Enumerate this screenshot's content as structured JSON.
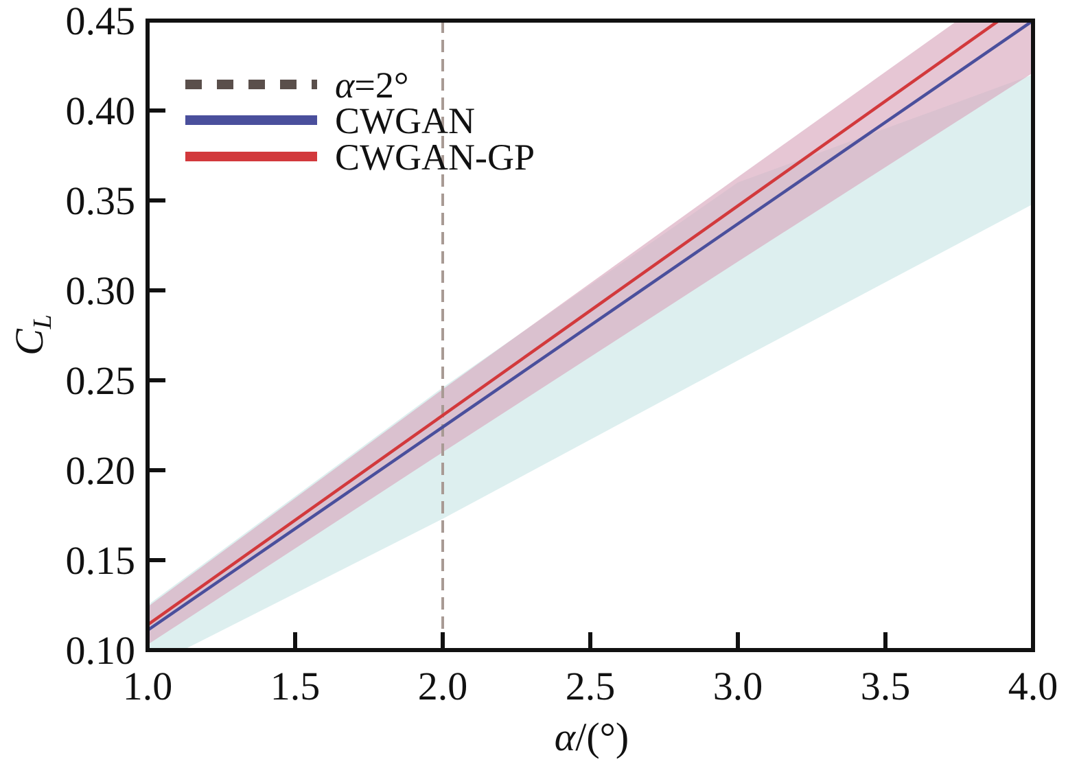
{
  "chart_data": {
    "type": "line",
    "title": "",
    "xlabel": "α/(°)",
    "xlabel_parts": {
      "symbol": "α",
      "rest": "/(°)"
    },
    "ylabel": "C_L",
    "ylabel_parts": {
      "main": "C",
      "sub": "L"
    },
    "xlim": [
      1.0,
      4.0
    ],
    "ylim": [
      0.1,
      0.45
    ],
    "xticks": [
      1.0,
      1.5,
      2.0,
      2.5,
      3.0,
      3.5,
      4.0
    ],
    "xtick_labels": [
      "1.0",
      "1.5",
      "2.0",
      "2.5",
      "3.0",
      "3.5",
      "4.0"
    ],
    "yticks": [
      0.1,
      0.15,
      0.2,
      0.25,
      0.3,
      0.35,
      0.4,
      0.45
    ],
    "ytick_labels": [
      "0.10",
      "0.15",
      "0.20",
      "0.25",
      "0.30",
      "0.35",
      "0.40",
      "0.45"
    ],
    "grid": false,
    "legend_position": "top-left",
    "vline": {
      "x": 2.0,
      "label": "α=2°",
      "label_parts": {
        "symbol": "α",
        "rest": "=2°"
      },
      "color": "#5a4f4b",
      "style": "dashed"
    },
    "series": [
      {
        "name": "CWGAN",
        "color": "#4a4f9c",
        "band_color": "#cfe8e8",
        "x": [
          1.0,
          2.0,
          3.0,
          4.0
        ],
        "values": [
          0.111,
          0.224,
          0.337,
          0.45
        ],
        "band_lower": [
          0.09,
          0.173,
          0.261,
          0.348
        ],
        "band_upper": [
          0.125,
          0.246,
          0.36,
          0.42
        ]
      },
      {
        "name": "CWGAN-GP",
        "color": "#d2393c",
        "band_color": "#d9a8bd",
        "x": [
          1.0,
          2.0,
          3.0,
          4.0
        ],
        "values": [
          0.114,
          0.2305,
          0.347,
          0.4635
        ],
        "band_lower": [
          0.103,
          0.21,
          0.316,
          0.421
        ],
        "band_upper": [
          0.124,
          0.245,
          0.363,
          0.48
        ]
      }
    ]
  }
}
